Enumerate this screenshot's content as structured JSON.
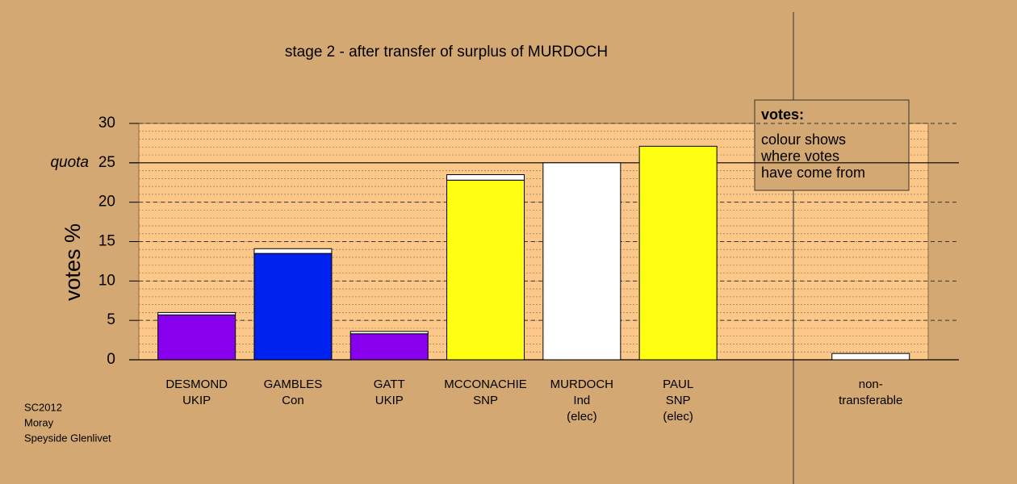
{
  "chart_data": {
    "type": "stacked_bar",
    "title": "stage 2 - after transfer of surplus of MURDOCH",
    "y_label": "votes %",
    "categories": [
      [
        "DESMOND",
        "UKIP"
      ],
      [
        "GAMBLES",
        "Con"
      ],
      [
        "GATT",
        "UKIP"
      ],
      [
        "MCCONACHIE",
        "SNP"
      ],
      [
        "MURDOCH",
        "Ind",
        "(elec)"
      ],
      [
        "PAUL",
        "SNP",
        "(elec)"
      ],
      null,
      [
        "non-",
        "transferable"
      ]
    ],
    "series": [
      {
        "colors": [
          "#8800ee",
          "#0022ee",
          "#8800ee",
          "#ffff11",
          "#ffffff",
          "#ffff11",
          null,
          null
        ],
        "values": [
          5.7,
          13.5,
          3.3,
          22.8,
          25,
          27.1,
          null,
          null
        ]
      },
      {
        "color": "#ffffff",
        "values": [
          0.3,
          0.6,
          0.3,
          0.7,
          null,
          null,
          null,
          0.8
        ]
      }
    ],
    "ylim": [
      0,
      30
    ],
    "yticks": [
      0,
      5,
      10,
      15,
      20,
      25,
      30
    ],
    "quota": 25,
    "quota_label": "quota",
    "minor_grid_step": 1,
    "grid": true,
    "legend": {
      "title": "votes:",
      "lines": [
        "colour shows",
        "where votes",
        "have come from"
      ]
    },
    "notes": [
      "SC2012",
      "Moray",
      "Speyside Glenlivet"
    ]
  }
}
